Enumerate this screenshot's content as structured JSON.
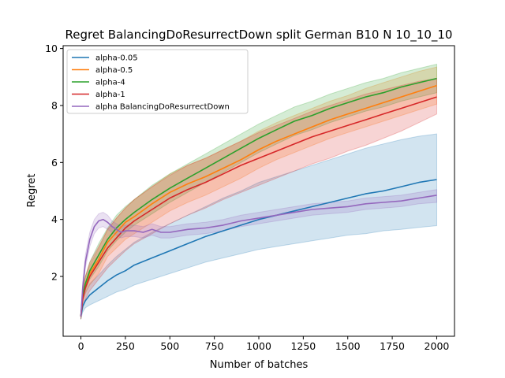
{
  "chart_data": {
    "type": "line",
    "title": "Regret BalancingDoResurrectDown split German B10 N 10_10_10",
    "xlabel": "Number of batches",
    "ylabel": "Regret",
    "xlim": [
      -100,
      2100
    ],
    "ylim": [
      -0.1,
      10.1
    ],
    "xticks": [
      0,
      250,
      500,
      750,
      1000,
      1250,
      1500,
      1750,
      2000
    ],
    "yticks": [
      2,
      4,
      6,
      8,
      10
    ],
    "grid": false,
    "legend_position": "top-left",
    "series": [
      {
        "name": "alpha-0.05",
        "color": "#1f77b4",
        "x": [
          0,
          10,
          25,
          50,
          100,
          150,
          200,
          250,
          300,
          400,
          500,
          600,
          700,
          800,
          900,
          1000,
          1100,
          1200,
          1300,
          1400,
          1500,
          1600,
          1700,
          1800,
          1900,
          2000
        ],
        "mean": [
          0.6,
          0.95,
          1.15,
          1.35,
          1.6,
          1.85,
          2.05,
          2.2,
          2.4,
          2.65,
          2.9,
          3.15,
          3.4,
          3.6,
          3.8,
          4.0,
          4.15,
          4.3,
          4.45,
          4.6,
          4.75,
          4.9,
          5.0,
          5.15,
          5.3,
          5.4
        ],
        "lower": [
          0.5,
          0.75,
          0.9,
          1.0,
          1.15,
          1.3,
          1.45,
          1.55,
          1.7,
          1.9,
          2.1,
          2.3,
          2.5,
          2.65,
          2.8,
          2.95,
          3.05,
          3.15,
          3.25,
          3.35,
          3.45,
          3.5,
          3.6,
          3.65,
          3.72,
          3.78
        ],
        "upper": [
          0.7,
          1.2,
          1.45,
          1.75,
          2.05,
          2.4,
          2.7,
          2.95,
          3.2,
          3.55,
          3.85,
          4.15,
          4.45,
          4.75,
          5.0,
          5.3,
          5.5,
          5.7,
          5.9,
          6.1,
          6.3,
          6.5,
          6.65,
          6.8,
          6.92,
          7.0
        ]
      },
      {
        "name": "alpha-0.5",
        "color": "#ff7f0e",
        "x": [
          0,
          10,
          25,
          50,
          100,
          150,
          200,
          250,
          300,
          400,
          500,
          600,
          700,
          800,
          900,
          1000,
          1100,
          1200,
          1300,
          1400,
          1500,
          1600,
          1700,
          1800,
          1900,
          2000
        ],
        "mean": [
          0.6,
          1.3,
          1.7,
          2.1,
          2.6,
          3.2,
          3.55,
          3.9,
          4.1,
          4.55,
          4.95,
          5.25,
          5.5,
          5.8,
          6.1,
          6.45,
          6.75,
          7.0,
          7.25,
          7.5,
          7.7,
          7.9,
          8.1,
          8.3,
          8.5,
          8.7
        ],
        "lower": [
          0.5,
          1.1,
          1.4,
          1.7,
          2.1,
          2.7,
          3.0,
          3.3,
          3.5,
          3.9,
          4.3,
          4.6,
          4.85,
          5.15,
          5.45,
          5.8,
          6.1,
          6.35,
          6.6,
          6.85,
          7.05,
          7.25,
          7.45,
          7.65,
          7.85,
          8.05
        ],
        "upper": [
          0.7,
          1.5,
          2.0,
          2.4,
          3.0,
          3.65,
          4.05,
          4.4,
          4.7,
          5.15,
          5.6,
          5.9,
          6.15,
          6.45,
          6.75,
          7.1,
          7.4,
          7.65,
          7.9,
          8.15,
          8.35,
          8.6,
          8.8,
          9.0,
          9.2,
          9.35
        ]
      },
      {
        "name": "alpha-4",
        "color": "#2ca02c",
        "x": [
          0,
          10,
          25,
          50,
          100,
          150,
          200,
          250,
          300,
          400,
          500,
          600,
          700,
          800,
          900,
          1000,
          1100,
          1200,
          1300,
          1400,
          1500,
          1600,
          1700,
          1800,
          1900,
          2000
        ],
        "mean": [
          0.6,
          1.35,
          1.75,
          2.2,
          2.75,
          3.3,
          3.7,
          4.0,
          4.25,
          4.7,
          5.1,
          5.45,
          5.8,
          6.15,
          6.5,
          6.85,
          7.15,
          7.45,
          7.65,
          7.9,
          8.1,
          8.3,
          8.45,
          8.65,
          8.8,
          8.95
        ],
        "lower": [
          0.5,
          1.15,
          1.5,
          1.9,
          2.35,
          2.9,
          3.25,
          3.55,
          3.8,
          4.2,
          4.6,
          4.95,
          5.3,
          5.65,
          6.0,
          6.35,
          6.65,
          6.95,
          7.15,
          7.4,
          7.6,
          7.8,
          7.95,
          8.15,
          8.3,
          8.45
        ],
        "upper": [
          0.7,
          1.55,
          2.0,
          2.5,
          3.15,
          3.7,
          4.15,
          4.45,
          4.7,
          5.2,
          5.6,
          5.95,
          6.3,
          6.65,
          7.0,
          7.35,
          7.65,
          7.95,
          8.15,
          8.4,
          8.6,
          8.8,
          8.95,
          9.15,
          9.3,
          9.45
        ]
      },
      {
        "name": "alpha-1",
        "color": "#d62728",
        "x": [
          0,
          10,
          25,
          50,
          100,
          150,
          200,
          250,
          300,
          400,
          500,
          600,
          700,
          800,
          900,
          1000,
          1100,
          1200,
          1300,
          1400,
          1500,
          1600,
          1700,
          1800,
          1900,
          2000
        ],
        "mean": [
          0.6,
          1.2,
          1.6,
          2.0,
          2.5,
          3.0,
          3.35,
          3.7,
          3.95,
          4.35,
          4.75,
          5.05,
          5.3,
          5.6,
          5.9,
          6.15,
          6.4,
          6.65,
          6.9,
          7.1,
          7.3,
          7.5,
          7.7,
          7.9,
          8.1,
          8.3
        ],
        "lower": [
          0.5,
          0.9,
          1.2,
          1.5,
          1.9,
          2.3,
          2.6,
          2.9,
          3.15,
          3.5,
          3.85,
          4.15,
          4.4,
          4.7,
          4.95,
          5.2,
          5.45,
          5.7,
          5.95,
          6.15,
          6.4,
          6.6,
          6.85,
          7.1,
          7.4,
          7.7
        ],
        "upper": [
          0.7,
          1.5,
          2.0,
          2.5,
          3.05,
          3.65,
          4.05,
          4.4,
          4.7,
          5.15,
          5.55,
          5.9,
          6.15,
          6.45,
          6.75,
          7.05,
          7.3,
          7.55,
          7.8,
          8.0,
          8.2,
          8.4,
          8.55,
          8.7,
          8.85,
          8.95
        ]
      },
      {
        "name": "alpha BalancingDoResurrectDown",
        "color": "#9467bd",
        "x": [
          0,
          10,
          25,
          50,
          75,
          100,
          125,
          150,
          175,
          200,
          225,
          250,
          300,
          350,
          400,
          450,
          500,
          600,
          700,
          800,
          900,
          1000,
          1100,
          1200,
          1300,
          1400,
          1500,
          1600,
          1700,
          1800,
          1900,
          2000
        ],
        "mean": [
          0.6,
          1.6,
          2.5,
          3.3,
          3.75,
          3.95,
          4.0,
          3.9,
          3.75,
          3.65,
          3.55,
          3.6,
          3.6,
          3.55,
          3.65,
          3.55,
          3.55,
          3.65,
          3.7,
          3.8,
          3.95,
          4.05,
          4.15,
          4.25,
          4.35,
          4.4,
          4.45,
          4.55,
          4.6,
          4.65,
          4.75,
          4.85
        ],
        "lower": [
          0.5,
          1.4,
          2.3,
          3.05,
          3.5,
          3.7,
          3.75,
          3.65,
          3.55,
          3.45,
          3.35,
          3.4,
          3.4,
          3.35,
          3.45,
          3.35,
          3.35,
          3.45,
          3.5,
          3.6,
          3.75,
          3.85,
          3.95,
          4.05,
          4.15,
          4.2,
          4.25,
          4.35,
          4.4,
          4.45,
          4.55,
          4.6
        ],
        "upper": [
          0.7,
          1.8,
          2.75,
          3.55,
          4.0,
          4.2,
          4.25,
          4.15,
          3.95,
          3.85,
          3.75,
          3.8,
          3.8,
          3.75,
          3.85,
          3.75,
          3.75,
          3.85,
          3.9,
          4.0,
          4.15,
          4.25,
          4.35,
          4.45,
          4.55,
          4.6,
          4.65,
          4.75,
          4.8,
          4.85,
          4.95,
          5.05
        ]
      }
    ]
  }
}
